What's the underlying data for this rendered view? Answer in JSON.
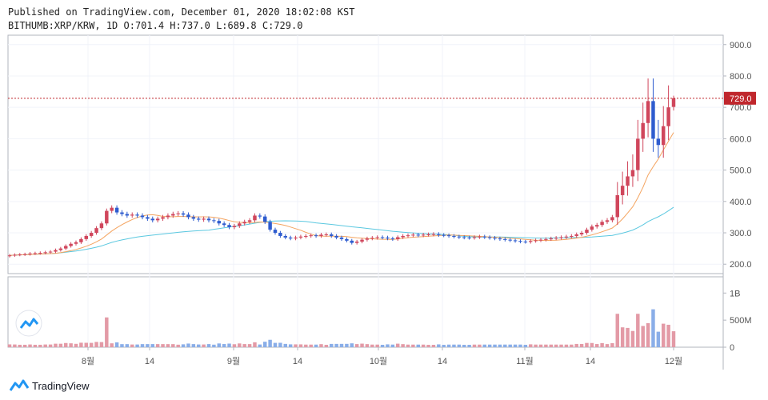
{
  "header": {
    "published": "Published on TradingView.com, December 01, 2020 18:02:08 KST",
    "symbol_line": "BITHUMB:XRP/KRW, 1D O:701.4 H:737.0 L:689.8 C:729.0"
  },
  "footer": {
    "brand": "TradingView"
  },
  "chart_data": {
    "type": "candlestick",
    "symbol": "BITHUMB:XRP/KRW",
    "interval": "1D",
    "ohlc_last": {
      "open": 701.4,
      "high": 737.0,
      "low": 689.8,
      "close": 729.0
    },
    "last_price_label": "729.0",
    "price_axis": {
      "ticks": [
        "900.0",
        "800.0",
        "700.0",
        "600.0",
        "500.0",
        "400.0",
        "300.0",
        "200.0"
      ],
      "range": [
        170,
        930
      ]
    },
    "volume_axis": {
      "ticks": [
        "1B",
        "500M",
        "0"
      ],
      "range": [
        0,
        1300000000
      ]
    },
    "x_ticks": [
      "8월",
      "14",
      "9월",
      "14",
      "10월",
      "14",
      "11월",
      "14",
      "12월"
    ],
    "colors": {
      "up": "#d0465c",
      "down": "#2e5ccf",
      "vol_up": "#e39aa6",
      "vol_down": "#8aaee8",
      "ma_short": "#f4a460",
      "ma_long": "#5bc8e0",
      "last_line": "#c0272d"
    },
    "close": [
      228,
      230,
      231,
      232,
      234,
      235,
      236,
      238,
      240,
      245,
      250,
      258,
      265,
      270,
      280,
      290,
      300,
      315,
      330,
      370,
      380,
      365,
      360,
      355,
      358,
      355,
      350,
      345,
      340,
      345,
      350,
      355,
      360,
      362,
      358,
      350,
      345,
      342,
      345,
      340,
      338,
      330,
      325,
      318,
      322,
      330,
      335,
      340,
      355,
      352,
      335,
      310,
      300,
      290,
      285,
      282,
      285,
      288,
      290,
      292,
      290,
      294,
      295,
      290,
      285,
      280,
      275,
      268,
      272,
      278,
      282,
      284,
      286,
      285,
      282,
      280,
      286,
      290,
      292,
      294,
      292,
      294,
      295,
      296,
      293,
      292,
      290,
      288,
      286,
      285,
      284,
      286,
      288,
      286,
      284,
      282,
      280,
      278,
      276,
      274,
      272,
      271,
      274,
      276,
      278,
      280,
      282,
      284,
      286,
      288,
      290,
      295,
      300,
      310,
      320,
      325,
      335,
      340,
      350,
      420,
      450,
      480,
      500,
      600,
      650,
      720,
      600,
      580,
      640,
      700,
      729
    ]
  }
}
